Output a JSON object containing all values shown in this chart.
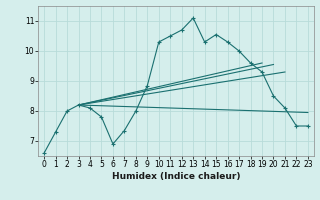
{
  "title": "",
  "xlabel": "Humidex (Indice chaleur)",
  "xlim": [
    -0.5,
    23.5
  ],
  "ylim": [
    6.5,
    11.5
  ],
  "yticks": [
    7,
    8,
    9,
    10,
    11
  ],
  "xticks": [
    0,
    1,
    2,
    3,
    4,
    5,
    6,
    7,
    8,
    9,
    10,
    11,
    12,
    13,
    14,
    15,
    16,
    17,
    18,
    19,
    20,
    21,
    22,
    23
  ],
  "background_color": "#d5eeec",
  "grid_color": "#b8dbd9",
  "line_color": "#1a7070",
  "series1": {
    "x": [
      0,
      1,
      2,
      3,
      4,
      5,
      6,
      7,
      8,
      9,
      10,
      11,
      12,
      13,
      14,
      15,
      16,
      17,
      18,
      19,
      20,
      21,
      22,
      23
    ],
    "y": [
      6.6,
      7.3,
      8.0,
      8.2,
      8.1,
      7.8,
      6.9,
      7.35,
      8.0,
      8.85,
      10.3,
      10.5,
      10.7,
      11.1,
      10.3,
      10.55,
      10.3,
      10.0,
      9.6,
      9.3,
      8.5,
      8.1,
      7.5,
      7.5
    ]
  },
  "series2": {
    "x": [
      3,
      23
    ],
    "y": [
      8.2,
      7.95
    ]
  },
  "series3": {
    "x": [
      3,
      21
    ],
    "y": [
      8.2,
      9.3
    ]
  },
  "series4": {
    "x": [
      3,
      20
    ],
    "y": [
      8.2,
      9.55
    ]
  },
  "series5": {
    "x": [
      3,
      19
    ],
    "y": [
      8.2,
      9.6
    ]
  }
}
